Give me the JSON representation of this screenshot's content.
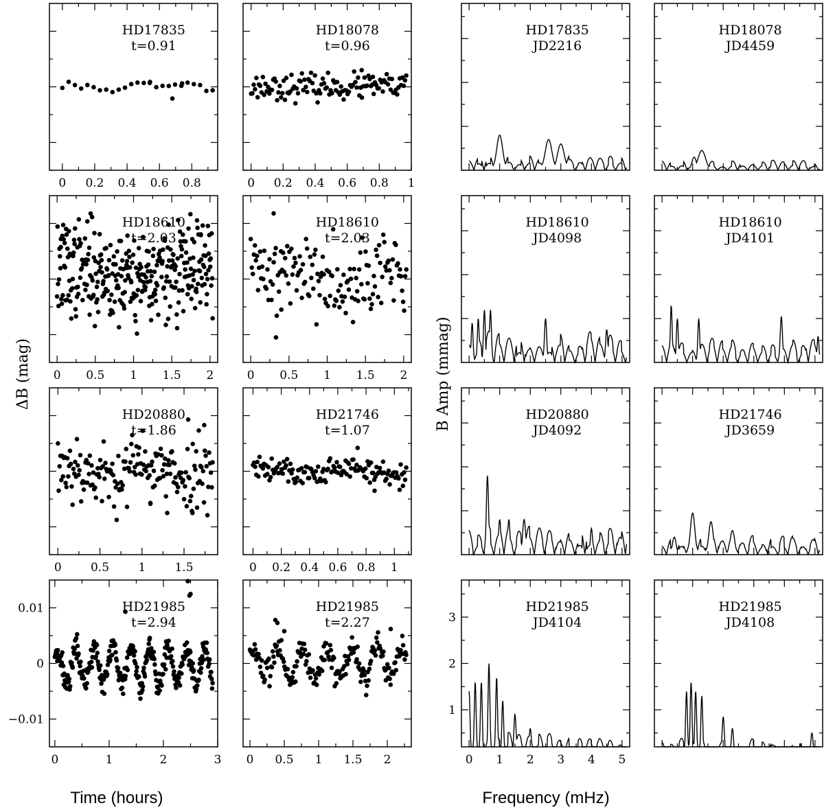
{
  "figure": {
    "ylabel_left": "ΔB (mag)",
    "ylabel_right": "B Amp (mmag)",
    "xlabel_left": "Time (hours)",
    "xlabel_right": "Frequency (mHz)"
  },
  "chart_data": [
    {
      "type": "scatter",
      "kind": "lightcurve",
      "star": "HD17835",
      "label2": "t=0.91",
      "xlim": [
        -0.08,
        0.96
      ],
      "ylim": [
        -0.015,
        0.015
      ],
      "xticks": [
        0,
        0.2,
        0.4,
        0.6,
        0.8
      ],
      "xticklabels": [
        "0",
        "0.2",
        "0.4",
        "0.6",
        "0.8"
      ],
      "yticks": [
        -0.01,
        0,
        0.01
      ],
      "show_yticklabels": false,
      "n": 25,
      "seed": 11,
      "base": 0,
      "noise": 0.0007,
      "trend_amp": 0,
      "period": 1,
      "spread": 0,
      "outliers": [
        {
          "x": 0.54,
          "y": 0.0007
        },
        {
          "x": 0.68,
          "y": -0.0021
        },
        {
          "x": 0.74,
          "y": 0.0006
        }
      ]
    },
    {
      "type": "scatter",
      "kind": "lightcurve",
      "star": "HD18078",
      "label2": "t=0.96",
      "xlim": [
        -0.05,
        1.0
      ],
      "ylim": [
        -0.015,
        0.015
      ],
      "xticks": [
        0,
        0.2,
        0.4,
        0.6,
        0.8,
        1
      ],
      "xticklabels": [
        "0",
        "0.2",
        "0.4",
        "0.6",
        "0.8",
        "1"
      ],
      "yticks": [
        -0.01,
        0,
        0.01
      ],
      "show_yticklabels": false,
      "n": 120,
      "seed": 23,
      "base": 0,
      "noise": 0.0011,
      "trend_amp": 0,
      "period": 1,
      "spread": 0,
      "outliers": [
        {
          "x": 0.69,
          "y": 0.003
        },
        {
          "x": 0.76,
          "y": 0.0018
        }
      ]
    },
    {
      "type": "scatter",
      "kind": "lightcurve",
      "star": "HD18610",
      "label2": "t=2.03",
      "xlim": [
        -0.1,
        2.1
      ],
      "ylim": [
        -0.015,
        0.015
      ],
      "xticks": [
        0,
        0.5,
        1,
        1.5,
        2
      ],
      "xticklabels": [
        "0",
        "0.5",
        "1",
        "1.5",
        "2"
      ],
      "yticks": [
        -0.01,
        0,
        0.01
      ],
      "show_yticklabels": false,
      "n": 330,
      "seed": 37,
      "base": 0.001,
      "noise": 0.0042,
      "trend_amp": 0.0008,
      "period": 1.7,
      "spread": 0,
      "outliers": [
        {
          "x": 0.05,
          "y": 0.0072
        },
        {
          "x": 0.92,
          "y": 0.0078
        },
        {
          "x": 1.88,
          "y": 0.0079
        }
      ]
    },
    {
      "type": "scatter",
      "kind": "lightcurve",
      "star": "HD18610",
      "label2": "t=2.03",
      "xlim": [
        -0.1,
        2.1
      ],
      "ylim": [
        -0.015,
        0.015
      ],
      "xticks": [
        0,
        0.5,
        1,
        1.5,
        2
      ],
      "xticklabels": [
        "0",
        "0.5",
        "1",
        "1.5",
        "2"
      ],
      "yticks": [
        -0.01,
        0,
        0.01
      ],
      "show_yticklabels": false,
      "n": 150,
      "seed": 41,
      "base": 0.001,
      "noise": 0.0035,
      "trend_amp": 0.0006,
      "period": 1.9,
      "spread": 0,
      "outliers": [
        {
          "x": 0.3,
          "y": 0.0118
        },
        {
          "x": 0.33,
          "y": -0.0105
        },
        {
          "x": 0.4,
          "y": -0.0055
        }
      ]
    },
    {
      "type": "scatter",
      "kind": "lightcurve",
      "star": "HD20880",
      "label2": "t=1.86",
      "xlim": [
        -0.1,
        1.9
      ],
      "ylim": [
        -0.015,
        0.015
      ],
      "xticks": [
        0,
        0.5,
        1,
        1.5
      ],
      "xticklabels": [
        "0",
        "0.5",
        "1",
        "1.5"
      ],
      "yticks": [
        -0.01,
        0,
        0.01
      ],
      "show_yticklabels": false,
      "n": 180,
      "seed": 53,
      "base": 0,
      "noise": 0.003,
      "trend_amp": 0.0012,
      "period": 0.9,
      "spread": 0,
      "outliers": [
        {
          "x": 1.55,
          "y": 0.0093
        },
        {
          "x": 1.74,
          "y": 0.0083
        },
        {
          "x": 1.3,
          "y": -0.0075
        },
        {
          "x": 1.6,
          "y": -0.0075
        },
        {
          "x": 1.1,
          "y": -0.0057
        }
      ]
    },
    {
      "type": "scatter",
      "kind": "lightcurve",
      "star": "HD21746",
      "label2": "t=1.07",
      "xlim": [
        -0.07,
        1.12
      ],
      "ylim": [
        -0.015,
        0.015
      ],
      "xticks": [
        0,
        0.2,
        0.4,
        0.6,
        0.8,
        1
      ],
      "xticklabels": [
        "0",
        "0.2",
        "0.4",
        "0.6",
        "0.8",
        "1"
      ],
      "yticks": [
        -0.01,
        0,
        0.01
      ],
      "show_yticklabels": false,
      "n": 140,
      "seed": 61,
      "base": 0,
      "noise": 0.0012,
      "trend_amp": 0.0006,
      "period": 0.6,
      "spread": 0,
      "outliers": [
        {
          "x": 0.74,
          "y": 0.0042
        },
        {
          "x": 0.86,
          "y": -0.0035
        }
      ]
    },
    {
      "type": "scatter",
      "kind": "lightcurve",
      "star": "HD21985",
      "label2": "t=2.94",
      "xlim": [
        -0.1,
        3.0
      ],
      "ylim": [
        -0.015,
        0.015
      ],
      "xticks": [
        0,
        1,
        2,
        3
      ],
      "xticklabels": [
        "0",
        "1",
        "2",
        "3"
      ],
      "yticks": [
        -0.01,
        0,
        0.01
      ],
      "yticklabels": [
        "−0.01",
        "0",
        "0.01"
      ],
      "show_yticklabels": true,
      "n": 320,
      "seed": 71,
      "base": -0.0005,
      "noise": 0.0012,
      "trend_amp": 0.0032,
      "period": 0.34,
      "spread": 0,
      "outliers": [
        {
          "x": 2.45,
          "y": 0.0148
        },
        {
          "x": 2.48,
          "y": 0.0122
        },
        {
          "x": 2.5,
          "y": 0.0125
        },
        {
          "x": 1.3,
          "y": 0.0093
        }
      ]
    },
    {
      "type": "scatter",
      "kind": "lightcurve",
      "star": "HD21985",
      "label2": "t=2.27",
      "xlim": [
        -0.1,
        2.35
      ],
      "ylim": [
        -0.015,
        0.015
      ],
      "xticks": [
        0,
        0.5,
        1,
        1.5,
        2
      ],
      "xticklabels": [
        "0",
        "0.5",
        "1",
        "1.5",
        "2"
      ],
      "yticks": [
        -0.01,
        0,
        0.01
      ],
      "show_yticklabels": false,
      "n": 200,
      "seed": 83,
      "base": 0,
      "noise": 0.0012,
      "trend_amp": 0.0028,
      "period": 0.36,
      "spread": 0,
      "outliers": [
        {
          "x": 0.37,
          "y": 0.0078
        },
        {
          "x": 0.4,
          "y": 0.0073
        },
        {
          "x": 2.05,
          "y": 0.0062
        },
        {
          "x": 0.5,
          "y": 0.0058
        }
      ]
    },
    {
      "type": "line",
      "kind": "spectrum",
      "star": "HD17835",
      "label2": "JD2216",
      "xlim": [
        -0.25,
        5.25
      ],
      "ylim": [
        0,
        3.8
      ],
      "xticks": [
        0,
        1,
        2,
        3,
        4,
        5
      ],
      "yticks": [
        1,
        2,
        3
      ],
      "show_xticklabels": false,
      "show_yticklabels": false,
      "noise_level": 0.28,
      "seed": 101,
      "peaks": [
        {
          "f": 1.0,
          "a": 0.8,
          "w": 0.16
        },
        {
          "f": 2.6,
          "a": 0.7,
          "w": 0.18
        },
        {
          "f": 3.0,
          "a": 0.6,
          "w": 0.18
        }
      ]
    },
    {
      "type": "line",
      "kind": "spectrum",
      "star": "HD18078",
      "label2": "JD4459",
      "xlim": [
        -0.25,
        5.25
      ],
      "ylim": [
        0,
        3.8
      ],
      "xticks": [
        0,
        1,
        2,
        3,
        4,
        5
      ],
      "yticks": [
        1,
        2,
        3
      ],
      "show_xticklabels": false,
      "show_yticklabels": false,
      "noise_level": 0.18,
      "seed": 113,
      "peaks": [
        {
          "f": 1.3,
          "a": 0.45,
          "w": 0.2
        },
        {
          "f": 1.05,
          "a": 0.3,
          "w": 0.12
        }
      ]
    },
    {
      "type": "line",
      "kind": "spectrum",
      "star": "HD18610",
      "label2": "JD4098",
      "xlim": [
        -0.25,
        5.25
      ],
      "ylim": [
        0,
        3.8
      ],
      "xticks": [
        0,
        1,
        2,
        3,
        4,
        5
      ],
      "yticks": [
        1,
        2,
        3
      ],
      "show_xticklabels": false,
      "show_yticklabels": false,
      "noise_level": 0.55,
      "seed": 127,
      "peaks": [
        {
          "f": 0.1,
          "a": 0.9,
          "w": 0.05
        },
        {
          "f": 0.3,
          "a": 1.0,
          "w": 0.05
        },
        {
          "f": 0.5,
          "a": 1.2,
          "w": 0.05
        },
        {
          "f": 0.7,
          "a": 1.2,
          "w": 0.05
        },
        {
          "f": 2.5,
          "a": 1.0,
          "w": 0.06
        },
        {
          "f": 4.5,
          "a": 0.75,
          "w": 0.06
        }
      ]
    },
    {
      "type": "line",
      "kind": "spectrum",
      "star": "HD18610",
      "label2": "JD4101",
      "xlim": [
        -0.25,
        5.25
      ],
      "ylim": [
        0,
        3.8
      ],
      "xticks": [
        0,
        1,
        2,
        3,
        4,
        5
      ],
      "yticks": [
        1,
        2,
        3
      ],
      "show_xticklabels": false,
      "show_yticklabels": false,
      "noise_level": 0.45,
      "seed": 131,
      "peaks": [
        {
          "f": 0.3,
          "a": 1.3,
          "w": 0.05
        },
        {
          "f": 0.5,
          "a": 1.0,
          "w": 0.05
        },
        {
          "f": 1.2,
          "a": 1.0,
          "w": 0.05
        },
        {
          "f": 3.9,
          "a": 1.05,
          "w": 0.06
        },
        {
          "f": 5.1,
          "a": 0.6,
          "w": 0.05
        }
      ]
    },
    {
      "type": "line",
      "kind": "spectrum",
      "star": "HD20880",
      "label2": "JD4092",
      "xlim": [
        -0.25,
        5.25
      ],
      "ylim": [
        0,
        3.8
      ],
      "xticks": [
        0,
        1,
        2,
        3,
        4,
        5
      ],
      "yticks": [
        1,
        2,
        3
      ],
      "show_xticklabels": false,
      "show_yticklabels": false,
      "noise_level": 0.5,
      "seed": 139,
      "peaks": [
        {
          "f": 0.6,
          "a": 1.8,
          "w": 0.06
        },
        {
          "f": 1.0,
          "a": 0.8,
          "w": 0.06
        },
        {
          "f": 1.3,
          "a": 0.8,
          "w": 0.06
        },
        {
          "f": 1.8,
          "a": 0.8,
          "w": 0.08
        },
        {
          "f": 4.0,
          "a": 0.6,
          "w": 0.06
        }
      ]
    },
    {
      "type": "line",
      "kind": "spectrum",
      "star": "HD21746",
      "label2": "JD3659",
      "xlim": [
        -0.25,
        5.25
      ],
      "ylim": [
        0,
        3.8
      ],
      "xticks": [
        0,
        1,
        2,
        3,
        4,
        5
      ],
      "yticks": [
        1,
        2,
        3
      ],
      "show_xticklabels": false,
      "show_yticklabels": false,
      "noise_level": 0.35,
      "seed": 149,
      "peaks": [
        {
          "f": 1.0,
          "a": 0.95,
          "w": 0.12
        },
        {
          "f": 1.6,
          "a": 0.75,
          "w": 0.12
        },
        {
          "f": 0.4,
          "a": 0.4,
          "w": 0.1
        },
        {
          "f": 2.3,
          "a": 0.55,
          "w": 0.12
        }
      ]
    },
    {
      "type": "line",
      "kind": "spectrum",
      "star": "HD21985",
      "label2": "JD4104",
      "xlim": [
        -0.25,
        5.25
      ],
      "ylim": [
        0.2,
        3.8
      ],
      "xticks": [
        0,
        1,
        2,
        3,
        4,
        5
      ],
      "xticklabels": [
        "0",
        "1",
        "2",
        "3",
        "4",
        "5"
      ],
      "yticks": [
        1,
        2,
        3
      ],
      "yticklabels": [
        "1",
        "2",
        "3"
      ],
      "show_xticklabels": true,
      "show_yticklabels": true,
      "noise_level": 0.4,
      "seed": 157,
      "peaks": [
        {
          "f": 0.0,
          "a": 1.4,
          "w": 0.05
        },
        {
          "f": 0.2,
          "a": 1.6,
          "w": 0.05
        },
        {
          "f": 0.4,
          "a": 1.6,
          "w": 0.05
        },
        {
          "f": 0.65,
          "a": 2.0,
          "w": 0.05
        },
        {
          "f": 0.9,
          "a": 1.7,
          "w": 0.05
        },
        {
          "f": 1.1,
          "a": 1.2,
          "w": 0.05
        },
        {
          "f": 1.5,
          "a": 0.9,
          "w": 0.06
        },
        {
          "f": 2.0,
          "a": 0.6,
          "w": 0.06
        }
      ]
    },
    {
      "type": "line",
      "kind": "spectrum",
      "star": "HD21985",
      "label2": "JD4108",
      "xlim": [
        -0.25,
        5.25
      ],
      "ylim": [
        0.2,
        3.8
      ],
      "xticks": [
        0,
        1,
        2,
        3,
        4,
        5
      ],
      "yticks": [
        1,
        2,
        3
      ],
      "show_xticklabels": false,
      "show_yticklabels": false,
      "noise_level": 0.3,
      "seed": 163,
      "peaks": [
        {
          "f": 0.8,
          "a": 1.4,
          "w": 0.05
        },
        {
          "f": 0.95,
          "a": 1.6,
          "w": 0.05
        },
        {
          "f": 1.1,
          "a": 1.4,
          "w": 0.05
        },
        {
          "f": 1.3,
          "a": 1.3,
          "w": 0.05
        },
        {
          "f": 2.0,
          "a": 0.85,
          "w": 0.06
        },
        {
          "f": 2.3,
          "a": 0.6,
          "w": 0.06
        },
        {
          "f": 4.9,
          "a": 0.5,
          "w": 0.06
        }
      ]
    }
  ]
}
